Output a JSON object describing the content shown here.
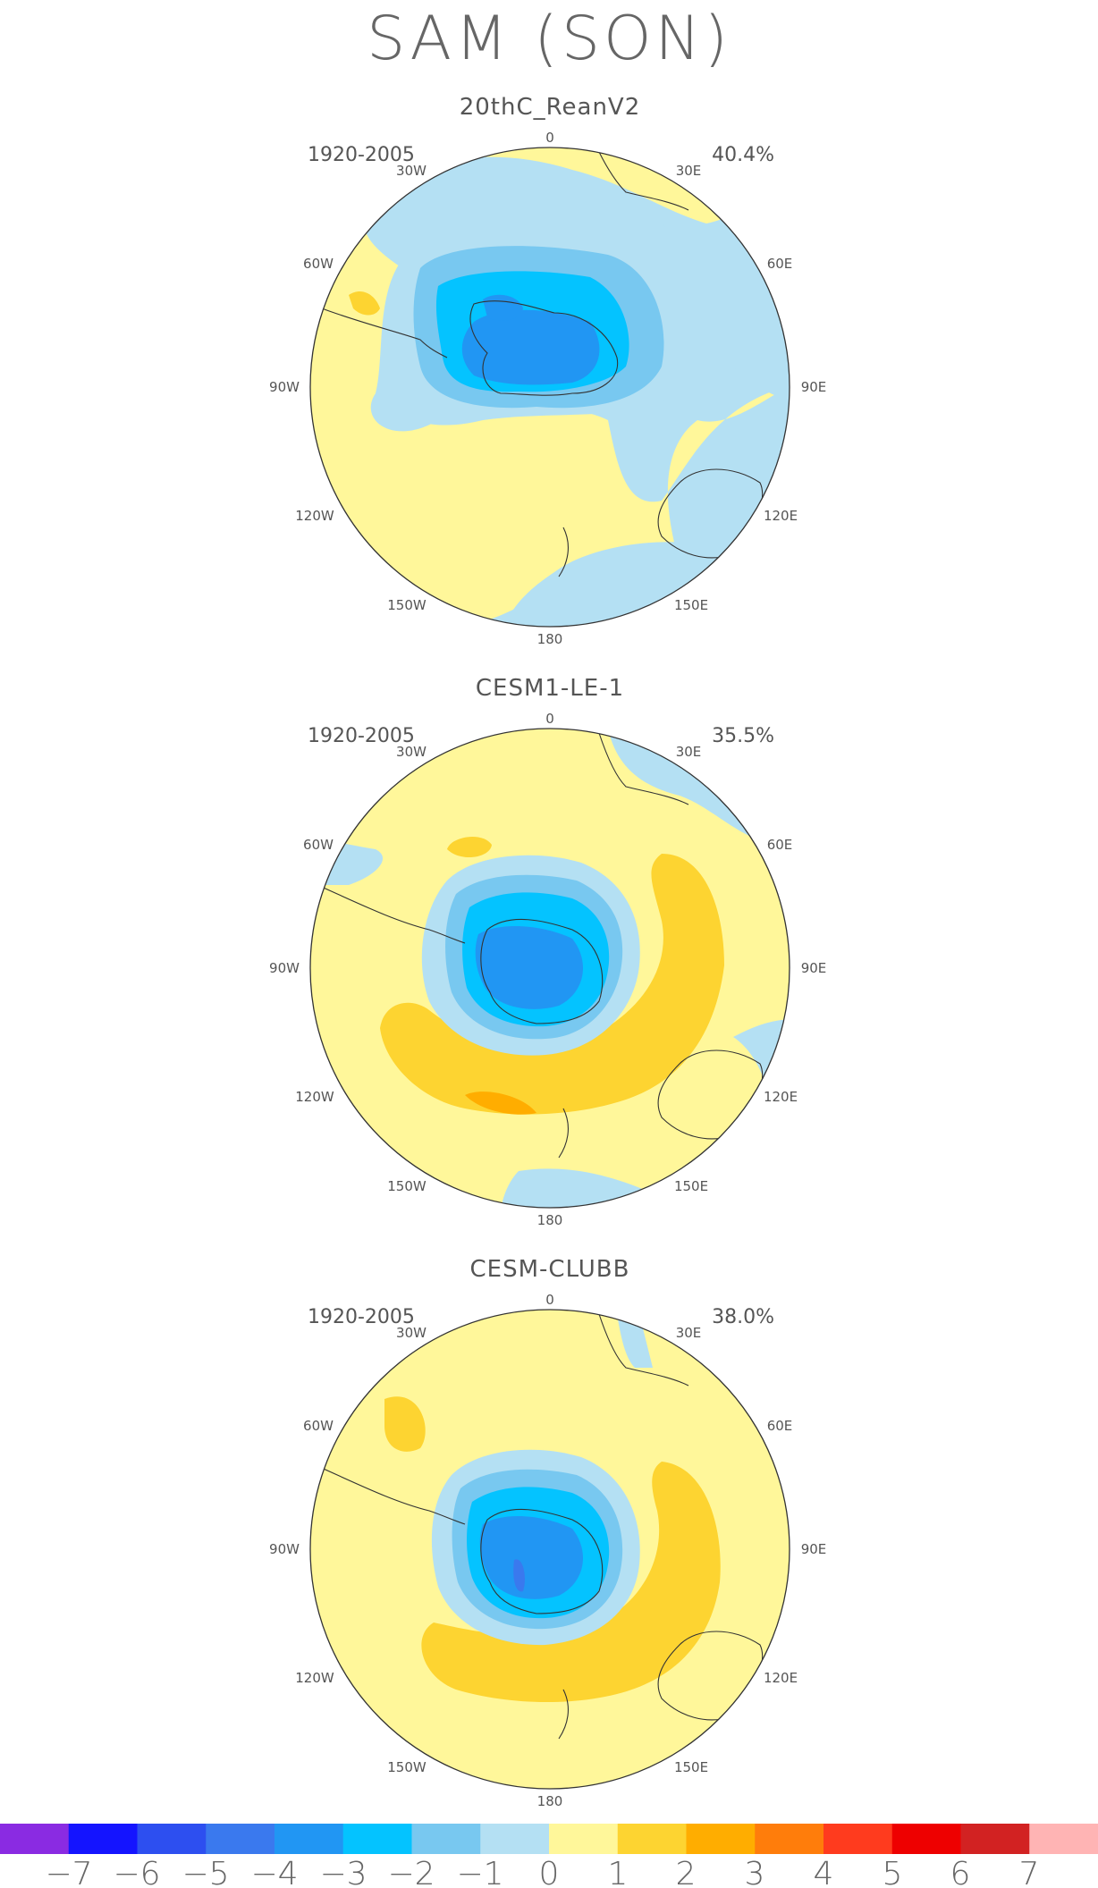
{
  "figure": {
    "title": "SAM (SON)",
    "colors": {
      "bins": [
        "#8a2be2",
        "#1414ff",
        "#2d4ff0",
        "#3a79ee",
        "#2196f3",
        "#04c3ff",
        "#78c8f0",
        "#b4e0f3",
        "#fff79a",
        "#fdd431",
        "#ffad00",
        "#ff7d0b",
        "#ff3b1e",
        "#ee0000",
        "#d22222",
        "#ffb4b4"
      ],
      "coast": "#333333"
    }
  },
  "panels": [
    {
      "title": "20thC_ReanV2",
      "period": "1920-2005",
      "variance": "40.4%"
    },
    {
      "title": "CESM1-LE-1",
      "period": "1920-2005",
      "variance": "35.5%"
    },
    {
      "title": "CESM-CLUBB",
      "period": "1920-2005",
      "variance": "38.0%"
    }
  ],
  "lon_labels": [
    "0",
    "30E",
    "60E",
    "90E",
    "120E",
    "150E",
    "180",
    "150W",
    "120W",
    "90W",
    "60W",
    "30W"
  ],
  "colorbar": {
    "labels": [
      "−7",
      "−6",
      "−5",
      "−4",
      "−3",
      "−2",
      "−1",
      "0",
      "1",
      "2",
      "3",
      "4",
      "5",
      "6",
      "7"
    ]
  }
}
